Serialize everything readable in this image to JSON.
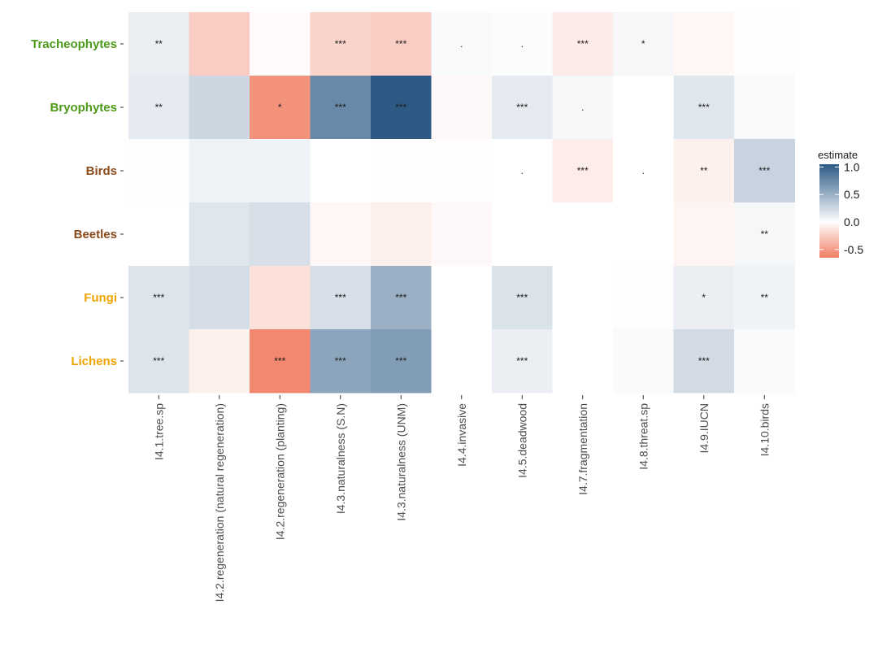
{
  "chart_data": {
    "type": "heatmap",
    "x_categories": [
      "I4.1.tree.sp",
      "I4.2.regeneration (natural regeneration)",
      "I4.2.regeneration (planting)",
      "I4.3.naturalness (S.N)",
      "I4.3.naturalness (UNM)",
      "I4.4.invasive",
      "I4.5.deadwood",
      "I4.7.fragmentation",
      "I4.8.threat.sp",
      "I4.9.IUCN",
      "I4.10.birds"
    ],
    "y_categories": [
      {
        "label": "Tracheophytes",
        "color": "#4d9a1a"
      },
      {
        "label": "Bryophytes",
        "color": "#4d9a1a"
      },
      {
        "label": "Birds",
        "color": "#8b4a1a"
      },
      {
        "label": "Beetles",
        "color": "#8b4a1a"
      },
      {
        "label": "Fungi",
        "color": "#f0a400"
      },
      {
        "label": "Lichens",
        "color": "#f0a400"
      }
    ],
    "values": [
      [
        0.1,
        -0.25,
        -0.02,
        -0.22,
        -0.25,
        0.03,
        0.02,
        -0.1,
        0.05,
        -0.04,
        -0.01
      ],
      [
        0.13,
        0.26,
        -0.55,
        0.75,
        1.05,
        -0.03,
        0.13,
        0.05,
        0.0,
        0.15,
        0.04
      ],
      [
        0.01,
        0.08,
        0.08,
        0.0,
        -0.01,
        -0.01,
        0.0,
        -0.09,
        0.0,
        -0.07,
        0.28
      ],
      [
        0.0,
        0.16,
        0.2,
        -0.04,
        -0.08,
        -0.03,
        0.0,
        0.0,
        0.0,
        -0.05,
        0.05
      ],
      [
        0.17,
        0.21,
        -0.15,
        0.2,
        0.5,
        0.0,
        0.18,
        0.0,
        0.01,
        0.1,
        0.08
      ],
      [
        0.17,
        -0.07,
        -0.6,
        0.57,
        0.62,
        0.0,
        0.1,
        0.0,
        0.03,
        0.22,
        0.03
      ]
    ],
    "significance": [
      [
        "**",
        "",
        "",
        "***",
        "***",
        ".",
        ".",
        "***",
        "*",
        "",
        ""
      ],
      [
        "**",
        "",
        "*",
        "***",
        "***",
        "",
        "***",
        ".",
        "",
        "***",
        ""
      ],
      [
        "",
        "",
        "",
        "",
        "",
        "",
        ".",
        "***",
        ".",
        "**",
        "***"
      ],
      [
        "",
        "",
        "",
        "",
        "",
        "",
        "",
        "",
        "",
        "",
        "**"
      ],
      [
        "***",
        "",
        "",
        "***",
        "***",
        "",
        "***",
        "",
        "",
        "*",
        "**"
      ],
      [
        "***",
        "",
        "***",
        "***",
        "***",
        "",
        "***",
        "",
        "",
        "***",
        ""
      ]
    ],
    "legend": {
      "title": "estimate",
      "ticks": [
        1.0,
        0.5,
        0.0,
        -0.5
      ],
      "tick_labels": [
        "1.0",
        "0.5",
        "0.0",
        "-0.5"
      ],
      "range": [
        -0.65,
        1.05
      ],
      "colors": {
        "high": "#2c5a85",
        "mid": "#ffffff",
        "low": "#f07e63"
      },
      "placement": "right"
    }
  }
}
